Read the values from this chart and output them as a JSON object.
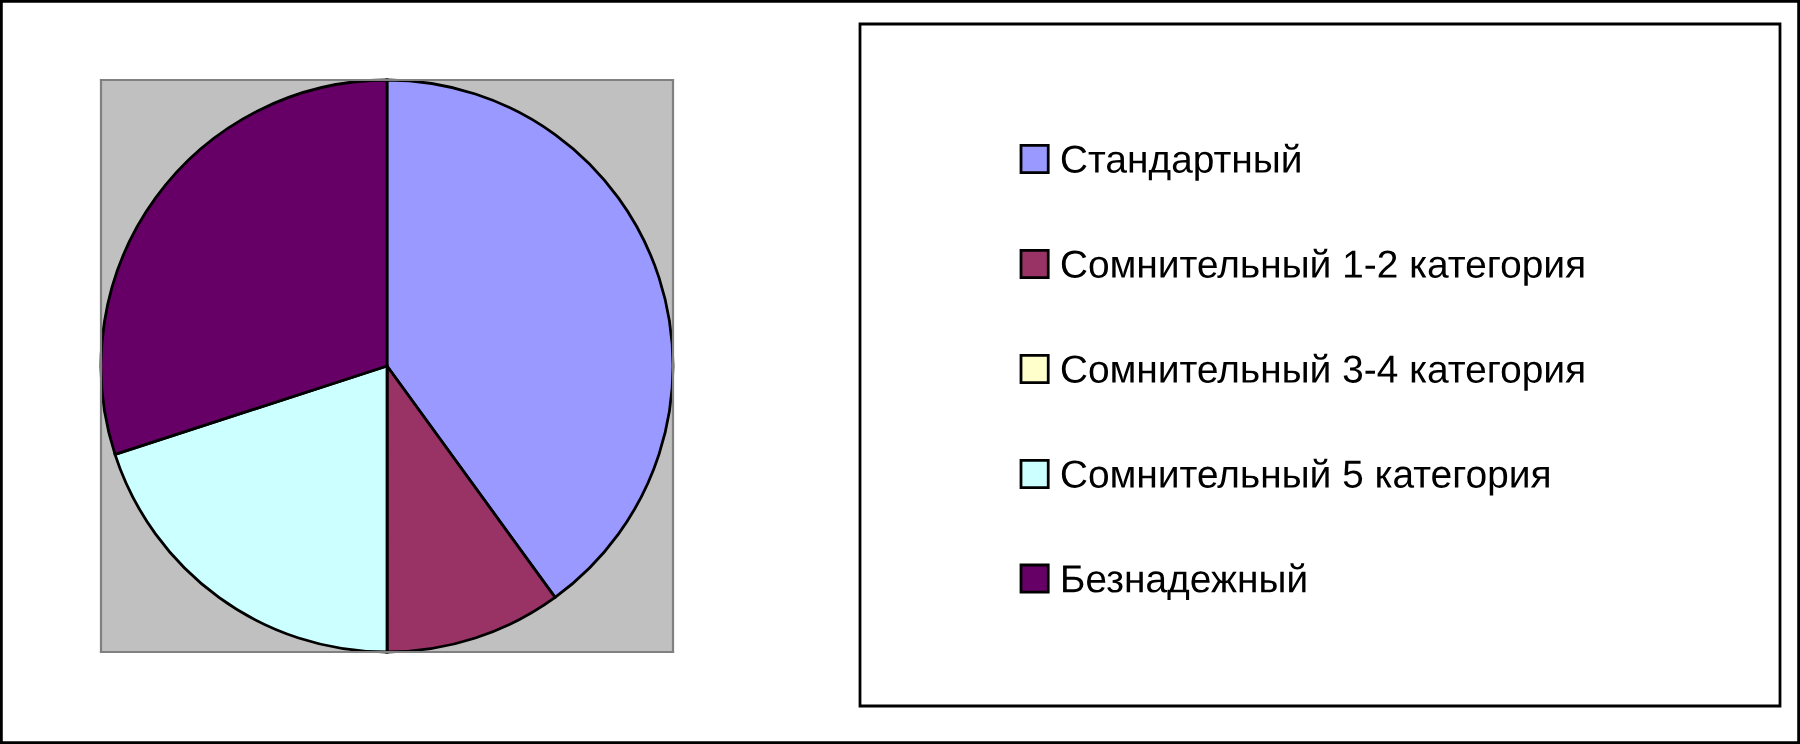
{
  "chart_data": {
    "type": "pie",
    "categories": [
      "Стандартный",
      "Сомнительный 1-2 категория",
      "Сомнительный 3-4 категория",
      "Сомнительный 5 категория",
      "Безнадежный"
    ],
    "values": [
      40,
      10,
      0,
      20,
      30
    ],
    "colors": [
      "#9999ff",
      "#993366",
      "#ffffcc",
      "#ccffff",
      "#660066"
    ],
    "legend": "right"
  }
}
